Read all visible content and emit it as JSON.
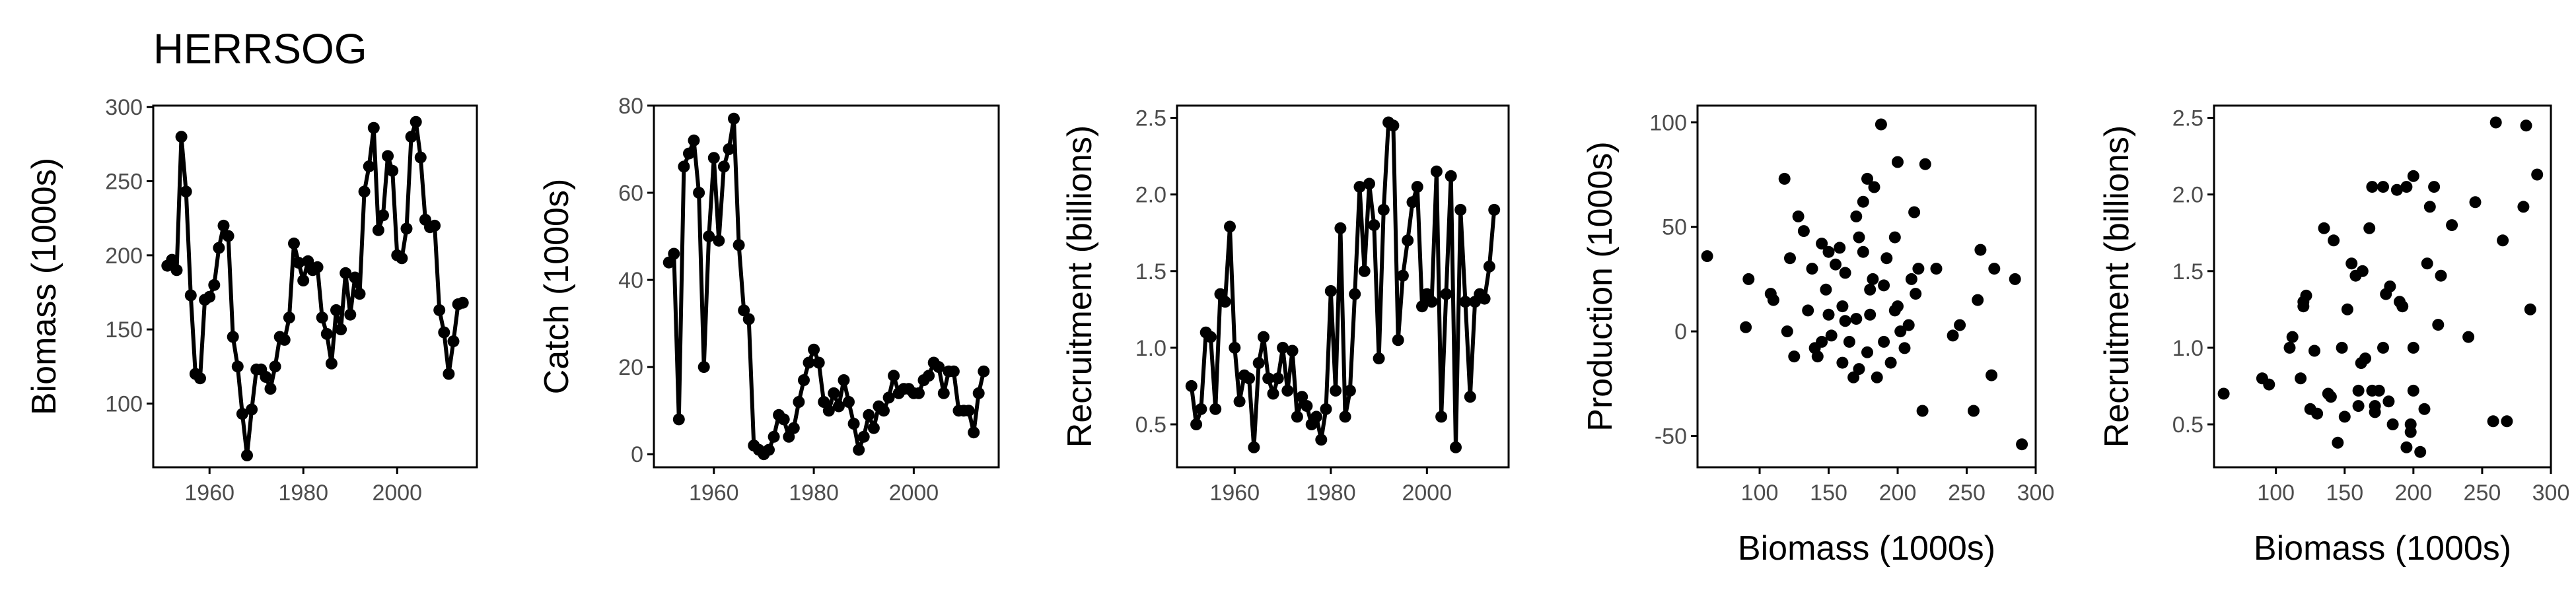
{
  "page_title": "HERRSOG",
  "colors": {
    "ink": "#000000",
    "tick_label": "#4d4d4d",
    "background": "#ffffff"
  },
  "chart_data": [
    {
      "type": "line",
      "xlabel": "",
      "ylabel": "Biomass (1000s)",
      "xlim": [
        1948,
        2017
      ],
      "ylim": [
        57,
        301
      ],
      "xticks": [
        1960,
        1980,
        2000
      ],
      "yticks": [
        100,
        150,
        200,
        250,
        300
      ],
      "x": [
        1951,
        1952,
        1953,
        1954,
        1955,
        1956,
        1957,
        1958,
        1959,
        1960,
        1961,
        1962,
        1963,
        1964,
        1965,
        1966,
        1967,
        1968,
        1969,
        1970,
        1971,
        1972,
        1973,
        1974,
        1975,
        1976,
        1977,
        1978,
        1979,
        1980,
        1981,
        1982,
        1983,
        1984,
        1985,
        1986,
        1987,
        1988,
        1989,
        1990,
        1991,
        1992,
        1993,
        1994,
        1995,
        1996,
        1997,
        1998,
        1999,
        2000,
        2001,
        2002,
        2003,
        2004,
        2005,
        2006,
        2007,
        2008,
        2009,
        2010,
        2011,
        2012,
        2013,
        2014
      ],
      "y": [
        193,
        197,
        190,
        280,
        243,
        173,
        120,
        117,
        170,
        172,
        180,
        205,
        220,
        213,
        145,
        125,
        93,
        65,
        96,
        123,
        123,
        118,
        110,
        125,
        145,
        143,
        158,
        208,
        195,
        183,
        196,
        190,
        192,
        158,
        147,
        127,
        163,
        150,
        188,
        160,
        185,
        174,
        243,
        260,
        286,
        217,
        227,
        267,
        257,
        200,
        198,
        218,
        280,
        290,
        266,
        224,
        219,
        220,
        163,
        148,
        120,
        142,
        167,
        168
      ]
    },
    {
      "type": "line",
      "xlabel": "",
      "ylabel": "Catch (1000s)",
      "xlim": [
        1948,
        2017
      ],
      "ylim": [
        -3,
        80
      ],
      "xticks": [
        1960,
        1980,
        2000
      ],
      "yticks": [
        0,
        20,
        40,
        60,
        80
      ],
      "x": [
        1951,
        1952,
        1953,
        1954,
        1955,
        1956,
        1957,
        1958,
        1959,
        1960,
        1961,
        1962,
        1963,
        1964,
        1965,
        1966,
        1967,
        1968,
        1969,
        1970,
        1971,
        1972,
        1973,
        1974,
        1975,
        1976,
        1977,
        1978,
        1979,
        1980,
        1981,
        1982,
        1983,
        1984,
        1985,
        1986,
        1987,
        1988,
        1989,
        1990,
        1991,
        1992,
        1993,
        1994,
        1995,
        1996,
        1997,
        1998,
        1999,
        2000,
        2001,
        2002,
        2003,
        2004,
        2005,
        2006,
        2007,
        2008,
        2009,
        2010,
        2011,
        2012,
        2013,
        2014
      ],
      "y": [
        44,
        46,
        8,
        66,
        69,
        72,
        60,
        20,
        50,
        68,
        49,
        66,
        70,
        77,
        48,
        33,
        31,
        2,
        1,
        0,
        1,
        4,
        9,
        8,
        4,
        6,
        12,
        17,
        21,
        24,
        21,
        12,
        10,
        14,
        11,
        17,
        12,
        7,
        1,
        4,
        9,
        6,
        11,
        10,
        13,
        18,
        14,
        15,
        15,
        14,
        14,
        17,
        18,
        21,
        20,
        14,
        19,
        19,
        10,
        10,
        10,
        5,
        14,
        19
      ]
    },
    {
      "type": "line",
      "xlabel": "",
      "ylabel": "Recruitment (billions)",
      "xlim": [
        1948,
        2017
      ],
      "ylim": [
        0.22,
        2.58
      ],
      "xticks": [
        1960,
        1980,
        2000
      ],
      "yticks": [
        0.5,
        1.0,
        1.5,
        2.0,
        2.5
      ],
      "x": [
        1951,
        1952,
        1953,
        1954,
        1955,
        1956,
        1957,
        1958,
        1959,
        1960,
        1961,
        1962,
        1963,
        1964,
        1965,
        1966,
        1967,
        1968,
        1969,
        1970,
        1971,
        1972,
        1973,
        1974,
        1975,
        1976,
        1977,
        1978,
        1979,
        1980,
        1981,
        1982,
        1983,
        1984,
        1985,
        1986,
        1987,
        1988,
        1989,
        1990,
        1991,
        1992,
        1993,
        1994,
        1995,
        1996,
        1997,
        1998,
        1999,
        2000,
        2001,
        2002,
        2003,
        2004,
        2005,
        2006,
        2007,
        2008,
        2009,
        2010,
        2011,
        2012,
        2013,
        2014
      ],
      "y": [
        0.75,
        0.5,
        0.6,
        1.1,
        1.07,
        0.6,
        1.35,
        1.3,
        1.79,
        1.0,
        0.65,
        0.82,
        0.8,
        0.35,
        0.9,
        1.07,
        0.8,
        0.7,
        0.8,
        1.0,
        0.72,
        0.98,
        0.55,
        0.68,
        0.62,
        0.5,
        0.55,
        0.4,
        0.6,
        1.37,
        0.72,
        1.78,
        0.55,
        0.72,
        1.35,
        2.05,
        1.5,
        2.07,
        1.8,
        0.93,
        1.9,
        2.47,
        2.45,
        1.05,
        1.47,
        1.7,
        1.95,
        2.05,
        1.27,
        1.35,
        1.3,
        2.15,
        0.55,
        1.35,
        2.12,
        0.35,
        1.9,
        1.3,
        0.68,
        1.3,
        1.35,
        1.32,
        1.53,
        1.9
      ]
    },
    {
      "type": "scatter",
      "xlabel": "Biomass (1000s)",
      "ylabel": "Production (1000s)",
      "xlim": [
        55,
        300
      ],
      "ylim": [
        -65,
        108
      ],
      "xticks": [
        100,
        150,
        200,
        250,
        300
      ],
      "yticks": [
        -50,
        0,
        50,
        100
      ],
      "x": [
        62,
        90,
        92,
        108,
        110,
        118,
        120,
        122,
        125,
        128,
        132,
        135,
        138,
        140,
        142,
        145,
        145,
        148,
        150,
        150,
        152,
        155,
        158,
        160,
        160,
        162,
        162,
        165,
        168,
        170,
        170,
        172,
        172,
        175,
        175,
        178,
        178,
        180,
        180,
        182,
        183,
        185,
        188,
        190,
        190,
        192,
        195,
        198,
        198,
        200,
        200,
        202,
        205,
        208,
        210,
        212,
        213,
        215,
        218,
        220,
        228,
        240,
        245,
        255,
        258,
        260,
        268,
        270,
        285,
        290
      ],
      "y": [
        36,
        2,
        25,
        18,
        15,
        73,
        0,
        35,
        -12,
        55,
        48,
        10,
        30,
        -8,
        -12,
        42,
        -5,
        20,
        38,
        8,
        -2,
        32,
        40,
        12,
        -15,
        28,
        5,
        -5,
        -22,
        6,
        55,
        45,
        -18,
        62,
        38,
        73,
        -10,
        8,
        20,
        25,
        69,
        -22,
        99,
        -5,
        22,
        35,
        -15,
        10,
        45,
        12,
        81,
        0,
        -8,
        3,
        25,
        57,
        18,
        30,
        -38,
        80,
        30,
        -2,
        3,
        -38,
        15,
        39,
        -21,
        30,
        25,
        -54
      ]
    },
    {
      "type": "scatter",
      "xlabel": "Biomass (1000s)",
      "ylabel": "Recruitment (billions)",
      "xlim": [
        55,
        300
      ],
      "ylim": [
        0.22,
        2.58
      ],
      "xticks": [
        100,
        150,
        200,
        250,
        300
      ],
      "yticks": [
        0.5,
        1.0,
        1.5,
        2.0,
        2.5
      ],
      "x": [
        62,
        90,
        95,
        110,
        112,
        118,
        120,
        120,
        122,
        125,
        128,
        130,
        135,
        138,
        140,
        142,
        145,
        148,
        150,
        152,
        155,
        158,
        160,
        160,
        162,
        163,
        165,
        168,
        170,
        170,
        172,
        172,
        175,
        178,
        178,
        180,
        182,
        183,
        185,
        188,
        190,
        192,
        195,
        195,
        198,
        198,
        200,
        200,
        200,
        205,
        208,
        210,
        212,
        215,
        218,
        220,
        228,
        240,
        245,
        258,
        260,
        265,
        268,
        280,
        282,
        285,
        290
      ],
      "y": [
        0.7,
        0.8,
        0.76,
        1.0,
        1.07,
        0.8,
        1.3,
        1.27,
        1.34,
        0.6,
        0.98,
        0.57,
        1.78,
        0.7,
        0.68,
        1.7,
        0.38,
        1.0,
        0.55,
        1.25,
        1.55,
        1.47,
        0.72,
        0.62,
        0.9,
        1.5,
        0.93,
        1.78,
        2.05,
        0.72,
        0.58,
        0.62,
        0.72,
        2.05,
        1.0,
        1.35,
        0.65,
        1.4,
        0.5,
        2.03,
        1.3,
        1.27,
        0.35,
        2.05,
        0.5,
        0.45,
        0.72,
        2.12,
        1.0,
        0.32,
        0.6,
        1.55,
        1.92,
        2.05,
        1.15,
        1.47,
        1.8,
        1.07,
        1.95,
        0.52,
        2.47,
        1.7,
        0.52,
        1.92,
        2.45,
        1.25,
        2.13
      ]
    }
  ]
}
